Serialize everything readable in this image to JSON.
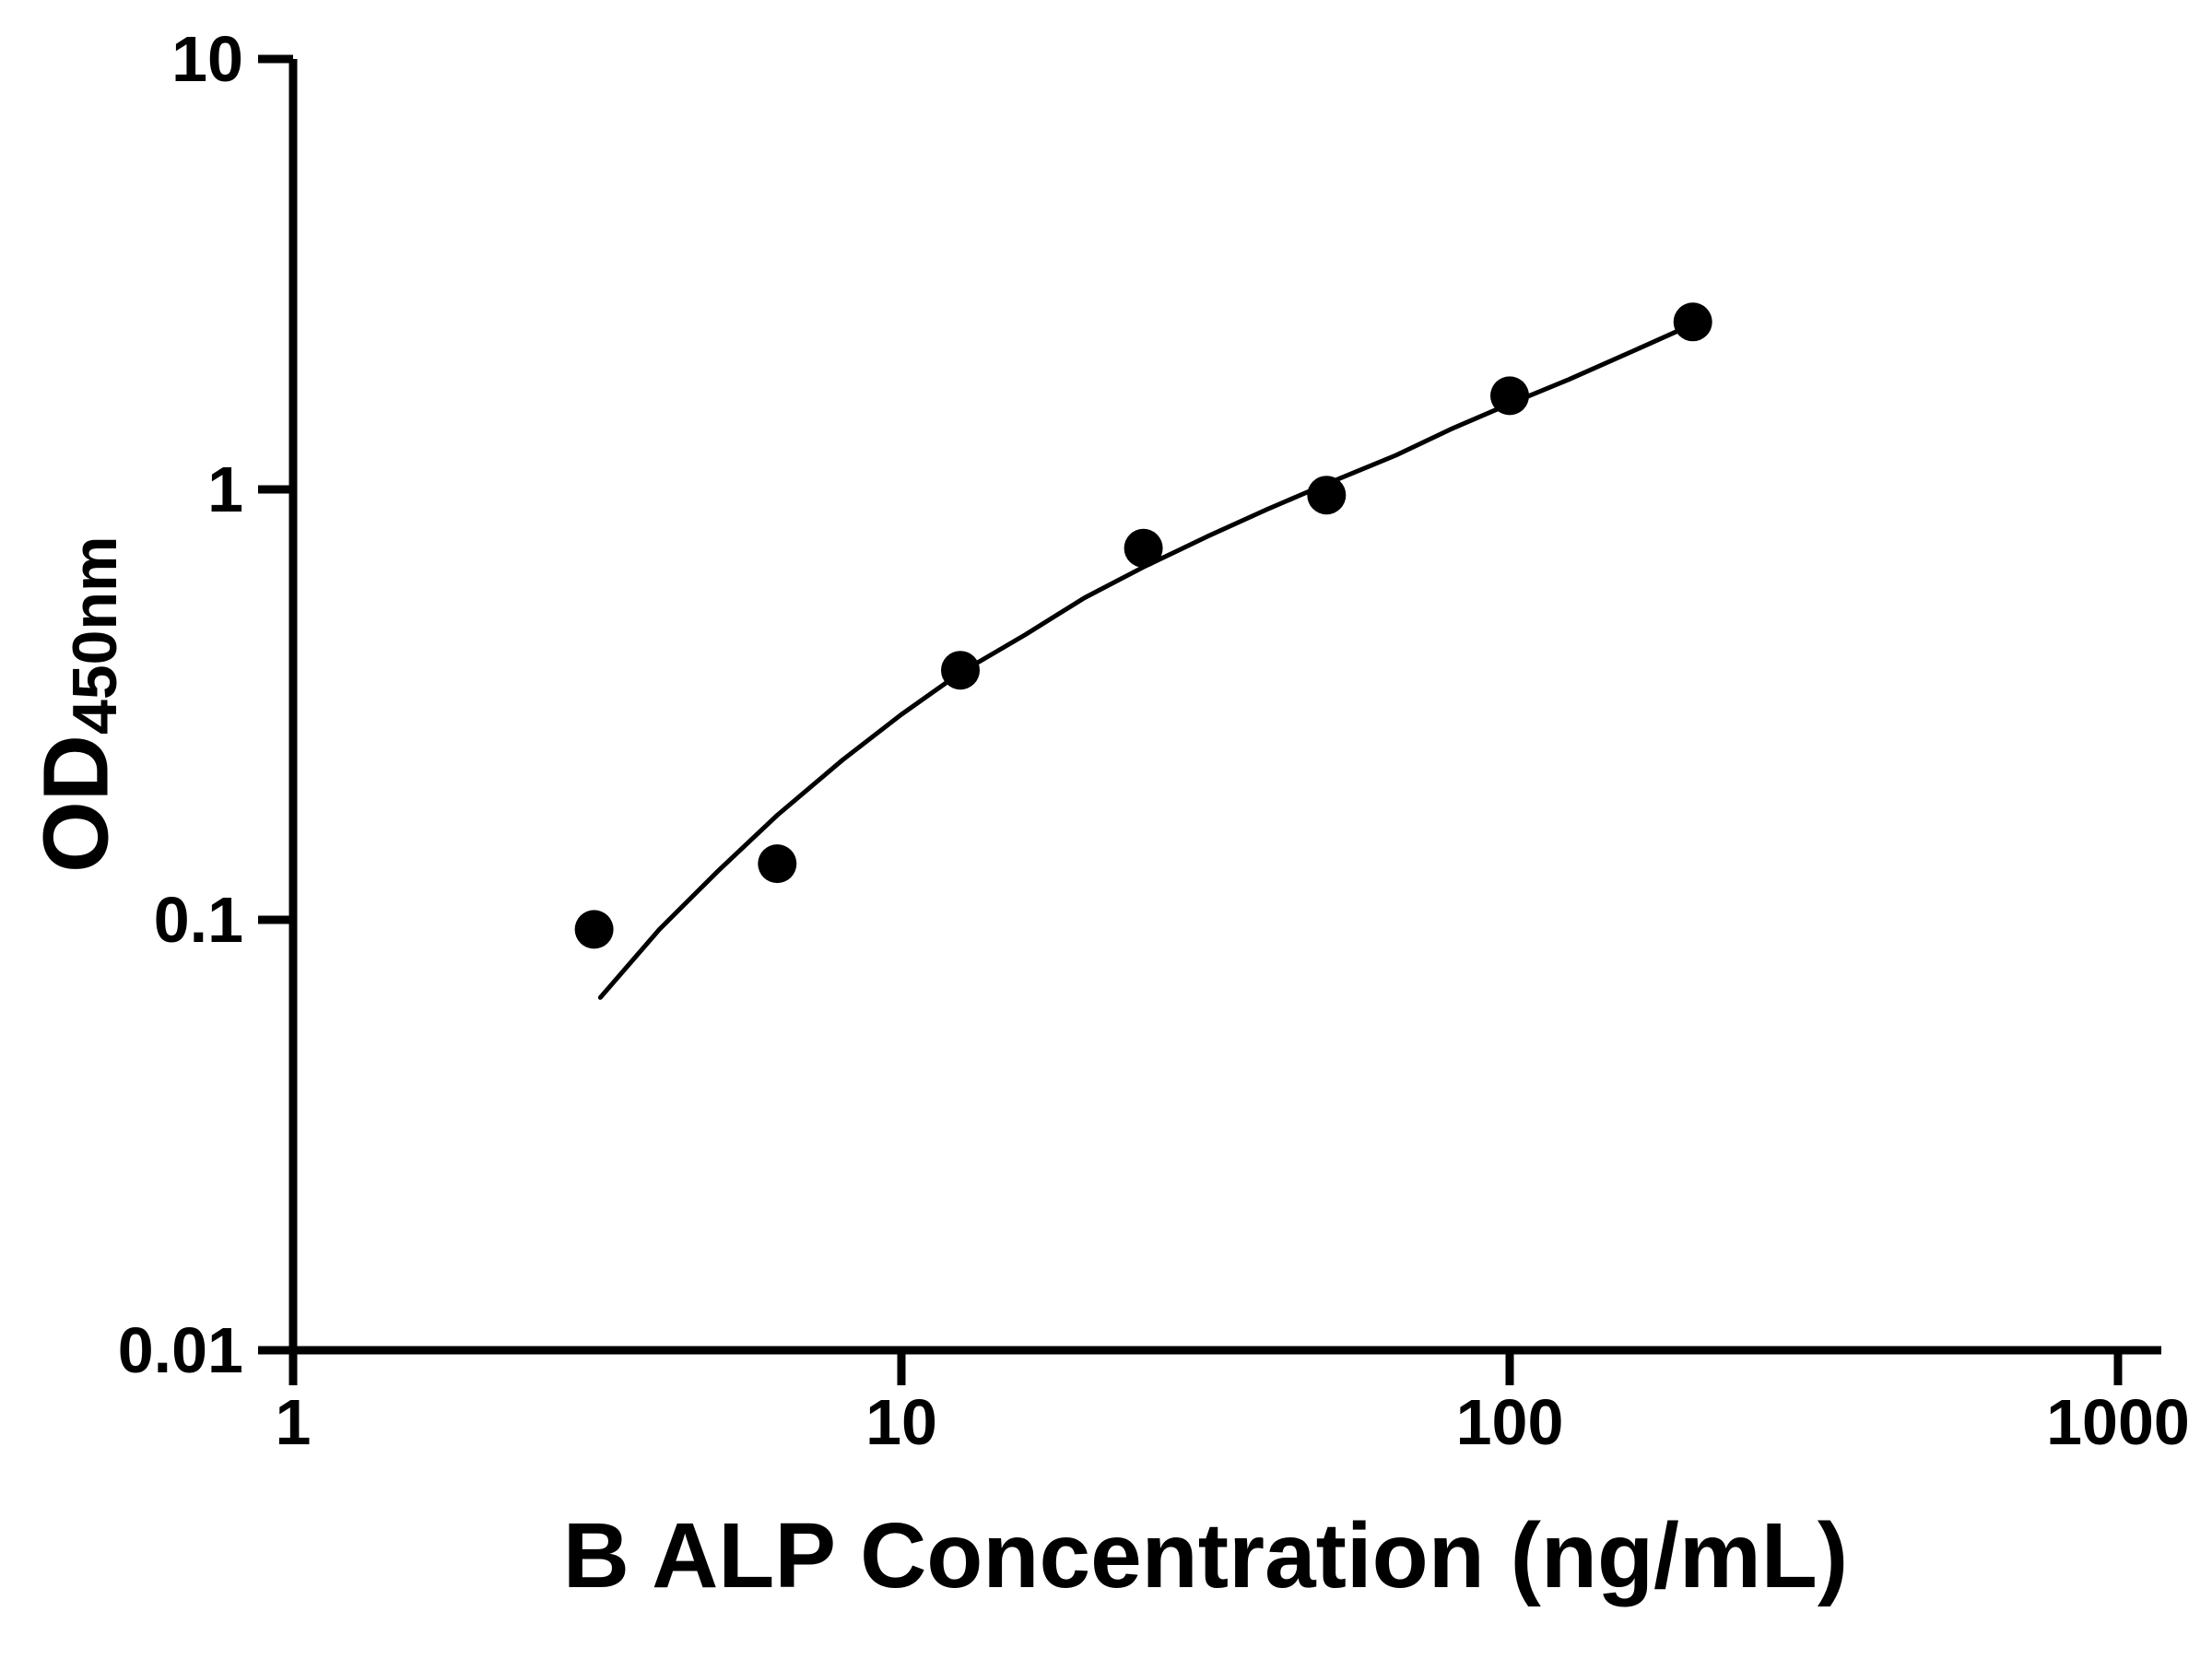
{
  "chart_data": {
    "type": "scatter",
    "title": "",
    "xlabel": "B ALP Concentration (ng/mL)",
    "ylabel": "OD",
    "ylabel_sub": "450nm",
    "x_scale": "log",
    "y_scale": "log",
    "xlim": [
      1,
      1000
    ],
    "ylim": [
      0.01,
      10
    ],
    "x_ticks": [
      1,
      10,
      100,
      1000
    ],
    "x_tick_labels": [
      "1",
      "10",
      "100",
      "1000"
    ],
    "y_ticks": [
      0.01,
      0.1,
      1,
      10
    ],
    "y_tick_labels": [
      "0.01",
      "0.1",
      "1",
      "10"
    ],
    "grid": false,
    "legend": null,
    "series": [
      {
        "name": "standard-points",
        "type": "scatter",
        "marker": "circle",
        "color": "#000000",
        "x": [
          3.125,
          6.25,
          12.5,
          25,
          50,
          100,
          200
        ],
        "y": [
          0.095,
          0.135,
          0.38,
          0.73,
          0.97,
          1.65,
          2.45
        ]
      },
      {
        "name": "fit-curve",
        "type": "line",
        "color": "#000000",
        "x": [
          3.2,
          4,
          5,
          6.25,
          8,
          10,
          12.5,
          16,
          20,
          25,
          32,
          40,
          50,
          65,
          80,
          100,
          125,
          160,
          200
        ],
        "y": [
          0.066,
          0.095,
          0.13,
          0.175,
          0.235,
          0.3,
          0.375,
          0.46,
          0.56,
          0.66,
          0.78,
          0.9,
          1.03,
          1.2,
          1.38,
          1.58,
          1.8,
          2.1,
          2.42
        ]
      }
    ],
    "colors": {
      "axis": "#000000",
      "marker": "#000000",
      "line": "#000000",
      "background": "#ffffff"
    }
  }
}
